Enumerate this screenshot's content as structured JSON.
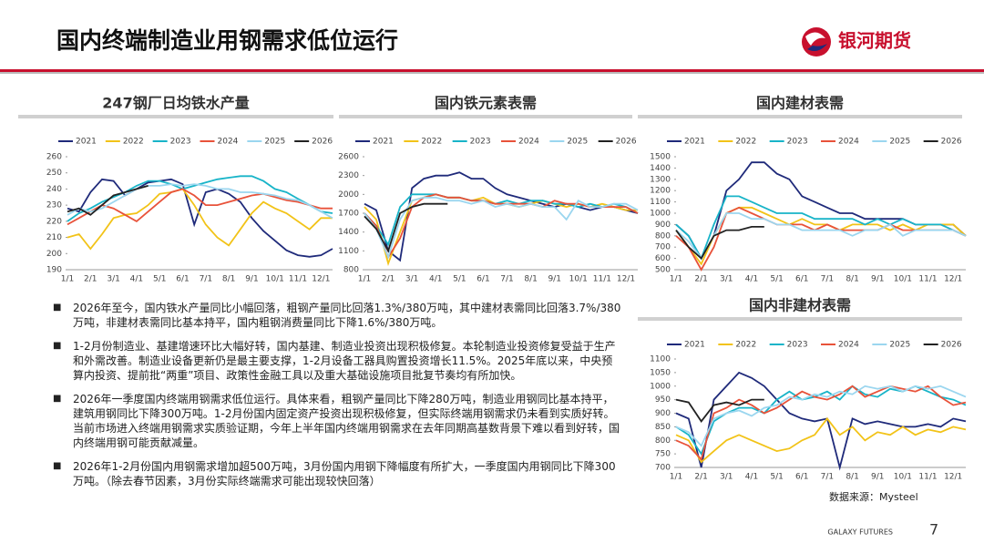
{
  "header": {
    "title": "国内终端制造业用钢需求低位运行",
    "logo": "银河期货"
  },
  "bullets": [
    "2026年至今，国内铁水产量同比小幅回落，粗钢产量同比回落1.3%/380万吨，其中建材表需同比回落3.7%/380万吨，非建材表需同比基本持平，国内粗钢消费量同比下降1.6%/380万吨。",
    "1-2月份制造业、基建增速环比大幅好转，国内基建、制造业投资出现积极修复。本轮制造业投资修复受益于生产和外需改善。制造业设备更新仍是最主要支撑，1-2月设备工器具购置投资增长11.5%。2025年底以来，中央预算内投资、提前批“两重”项目、政策性金融工具以及重大基础设施项目批复节奏均有所加快。",
    "2026年一季度国内终端用钢需求低位运行。具体来看，粗钢产量同比下降280万吨，制造业用钢同比基本持平，建筑用钢同比下降300万吨。1-2月份国内固定资产投资出现积极修复，但实际终端用钢需求仍未看到实质好转。当前市场进入终端用钢需求实质验证期，今年上半年国内终端用钢需求在去年同期高基数背景下难以看到好转，国内终端用钢可能贡献减量。",
    "2026年1-2月份国内用钢需求增加超500万吨，3月份国内用钢下降幅度有所扩大，一季度国内用钢同比下降300万吨。（除去春节因素，3月份实际终端需求可能出现较快回落）"
  ],
  "source": "数据来源：Mysteel",
  "footer": {
    "brand": "GALAXY FUTURES",
    "page": "7"
  },
  "chart_data": [
    {
      "type": "line",
      "title": "247钢厂日均铁水产量",
      "categories": [
        "1/1",
        null,
        "2/1",
        null,
        "3/1",
        null,
        "4/1",
        null,
        "5/1",
        null,
        "6/1",
        null,
        "7/1",
        null,
        "8/1",
        null,
        "9/1",
        null,
        "10/1",
        null,
        "11/1",
        null,
        "12/1",
        null
      ],
      "ylim": [
        190,
        260
      ],
      "yticks": [
        190,
        200,
        210,
        220,
        230,
        240,
        250,
        260
      ],
      "series": [
        {
          "name": "2021",
          "color": "#1f2a7a",
          "values": [
            228,
            226,
            238,
            246,
            245,
            236,
            240,
            244,
            245,
            246,
            243,
            218,
            238,
            240,
            237,
            232,
            222,
            214,
            208,
            202,
            199,
            198,
            199,
            203
          ]
        },
        {
          "name": "2022",
          "color": "#f2c318",
          "values": [
            210,
            212,
            203,
            212,
            222,
            224,
            225,
            230,
            237,
            238,
            240,
            230,
            218,
            210,
            205,
            215,
            225,
            232,
            228,
            225,
            220,
            215,
            222,
            222
          ]
        },
        {
          "name": "2023",
          "color": "#18b4c8",
          "values": [
            220,
            225,
            228,
            232,
            235,
            238,
            242,
            245,
            245,
            243,
            240,
            242,
            244,
            246,
            247,
            248,
            248,
            245,
            240,
            238,
            234,
            230,
            226,
            225
          ]
        },
        {
          "name": "2024",
          "color": "#e8523a",
          "values": [
            218,
            222,
            226,
            230,
            228,
            224,
            220,
            226,
            232,
            238,
            240,
            236,
            230,
            230,
            232,
            234,
            236,
            237,
            235,
            233,
            232,
            230,
            228,
            228
          ]
        },
        {
          "name": "2025",
          "color": "#9bd6ef",
          "values": [
            224,
            228,
            226,
            228,
            232,
            236,
            240,
            242,
            242,
            243,
            242,
            243,
            242,
            240,
            240,
            238,
            238,
            237,
            236,
            234,
            233,
            230,
            226,
            222
          ]
        },
        {
          "name": "2026",
          "color": "#222222",
          "values": [
            226,
            228,
            224,
            230,
            236,
            238,
            240,
            242,
            null,
            null,
            null,
            null,
            null,
            null,
            null,
            null,
            null,
            null,
            null,
            null,
            null,
            null,
            null,
            null
          ]
        }
      ]
    },
    {
      "type": "line",
      "title": "国内铁元素表需",
      "categories": [
        "1/1",
        null,
        "2/1",
        null,
        "3/1",
        null,
        "4/1",
        null,
        "5/1",
        null,
        "6/1",
        null,
        "7/1",
        null,
        "8/1",
        null,
        "9/1",
        null,
        "10/1",
        null,
        "11/1",
        null,
        "12/1",
        null
      ],
      "ylim": [
        800,
        2600
      ],
      "yticks": [
        800,
        1100,
        1400,
        1700,
        2000,
        2300,
        2600
      ],
      "series": [
        {
          "name": "2021",
          "color": "#1f2a7a",
          "values": [
            1850,
            1750,
            1100,
            950,
            2100,
            2250,
            2300,
            2300,
            2350,
            2250,
            2250,
            2100,
            2000,
            1950,
            1900,
            1850,
            1800,
            1850,
            1800,
            1750,
            1800,
            1800,
            1750,
            1700
          ]
        },
        {
          "name": "2022",
          "color": "#f2c318",
          "values": [
            1800,
            1600,
            900,
            1400,
            1900,
            1950,
            2000,
            1950,
            1950,
            1900,
            1950,
            1850,
            1850,
            1800,
            1850,
            1900,
            1850,
            1800,
            1850,
            1800,
            1850,
            1800,
            1750,
            1750
          ]
        },
        {
          "name": "2023",
          "color": "#18b4c8",
          "values": [
            1700,
            1500,
            1200,
            1800,
            2000,
            2000,
            2000,
            1950,
            1950,
            1900,
            1900,
            1850,
            1900,
            1850,
            1900,
            1900,
            1850,
            1850,
            1800,
            1850,
            1800,
            1850,
            1800,
            1700
          ]
        },
        {
          "name": "2024",
          "color": "#e8523a",
          "values": [
            1700,
            1500,
            1000,
            1300,
            1800,
            1950,
            2000,
            1950,
            1950,
            1900,
            1900,
            1850,
            1850,
            1850,
            1850,
            1800,
            1900,
            1850,
            1850,
            1800,
            1800,
            1800,
            1800,
            1700
          ]
        },
        {
          "name": "2025",
          "color": "#9bd6ef",
          "values": [
            1700,
            1450,
            1000,
            1600,
            1900,
            1950,
            1950,
            1900,
            1900,
            1850,
            1900,
            1800,
            1850,
            1800,
            1850,
            1800,
            1800,
            1600,
            1900,
            1800,
            1800,
            1850,
            1850,
            1750
          ]
        },
        {
          "name": "2026",
          "color": "#222222",
          "values": [
            1650,
            1450,
            1100,
            1700,
            1800,
            1850,
            1850,
            1850,
            null,
            null,
            null,
            null,
            null,
            null,
            null,
            null,
            null,
            null,
            null,
            null,
            null,
            null,
            null,
            null
          ]
        }
      ]
    },
    {
      "type": "line",
      "title": "国内建材表需",
      "categories": [
        "1/1",
        null,
        "2/1",
        null,
        "3/1",
        null,
        "4/1",
        null,
        "5/1",
        null,
        "6/1",
        null,
        "7/1",
        null,
        "8/1",
        null,
        "9/1",
        null,
        "10/1",
        null,
        "11/1",
        null,
        "12/1",
        null
      ],
      "ylim": [
        500,
        1500
      ],
      "yticks": [
        500,
        600,
        700,
        800,
        900,
        1000,
        1100,
        1200,
        1300,
        1400,
        1500
      ],
      "series": [
        {
          "name": "2021",
          "color": "#1f2a7a",
          "values": [
            900,
            800,
            600,
            800,
            1200,
            1300,
            1450,
            1450,
            1350,
            1300,
            1150,
            1100,
            1050,
            1000,
            1000,
            950,
            950,
            950,
            950,
            900,
            900,
            900,
            900,
            800
          ]
        },
        {
          "name": "2022",
          "color": "#f2c318",
          "values": [
            850,
            700,
            550,
            800,
            1000,
            1050,
            1050,
            1000,
            950,
            900,
            950,
            900,
            900,
            850,
            900,
            900,
            900,
            850,
            900,
            850,
            900,
            900,
            900,
            800
          ]
        },
        {
          "name": "2023",
          "color": "#18b4c8",
          "values": [
            900,
            800,
            600,
            900,
            1150,
            1150,
            1100,
            1050,
            1000,
            1000,
            1000,
            950,
            950,
            950,
            950,
            900,
            950,
            900,
            950,
            900,
            900,
            900,
            850,
            800
          ]
        },
        {
          "name": "2024",
          "color": "#e8523a",
          "values": [
            800,
            700,
            500,
            700,
            1000,
            1050,
            1000,
            950,
            900,
            900,
            900,
            850,
            900,
            850,
            850,
            850,
            850,
            900,
            850,
            850,
            850,
            850,
            850,
            800
          ]
        },
        {
          "name": "2025",
          "color": "#9bd6ef",
          "values": [
            850,
            750,
            600,
            800,
            1000,
            1000,
            950,
            950,
            900,
            900,
            850,
            850,
            850,
            850,
            800,
            850,
            850,
            900,
            800,
            850,
            850,
            850,
            850,
            800
          ]
        },
        {
          "name": "2026",
          "color": "#222222",
          "values": [
            850,
            700,
            600,
            800,
            850,
            850,
            880,
            880,
            null,
            null,
            null,
            null,
            null,
            null,
            null,
            null,
            null,
            null,
            null,
            null,
            null,
            null,
            null,
            null
          ]
        }
      ]
    },
    {
      "type": "line",
      "title": "国内非建材表需",
      "categories": [
        "1/1",
        null,
        "2/1",
        null,
        "3/1",
        null,
        "4/1",
        null,
        "5/1",
        null,
        "6/1",
        null,
        "7/1",
        null,
        "8/1",
        null,
        "9/1",
        null,
        "10/1",
        null,
        "11/1",
        null,
        "12/1",
        null
      ],
      "ylim": [
        700,
        1100
      ],
      "yticks": [
        700,
        750,
        800,
        850,
        900,
        950,
        1000,
        1050,
        1100
      ],
      "series": [
        {
          "name": "2021",
          "color": "#1f2a7a",
          "values": [
            900,
            880,
            700,
            950,
            1000,
            1050,
            1030,
            1000,
            950,
            900,
            880,
            870,
            880,
            700,
            880,
            860,
            870,
            860,
            850,
            850,
            860,
            850,
            880,
            870
          ]
        },
        {
          "name": "2022",
          "color": "#f2c318",
          "values": [
            820,
            800,
            720,
            760,
            800,
            820,
            800,
            780,
            760,
            770,
            800,
            820,
            880,
            820,
            850,
            800,
            830,
            820,
            850,
            820,
            840,
            830,
            850,
            840
          ]
        },
        {
          "name": "2023",
          "color": "#18b4c8",
          "values": [
            850,
            820,
            750,
            870,
            900,
            920,
            920,
            900,
            950,
            980,
            950,
            960,
            980,
            950,
            1000,
            970,
            960,
            990,
            980,
            1000,
            980,
            960,
            950,
            930
          ]
        },
        {
          "name": "2024",
          "color": "#e8523a",
          "values": [
            800,
            780,
            730,
            900,
            920,
            950,
            930,
            900,
            920,
            950,
            980,
            960,
            950,
            970,
            1000,
            960,
            980,
            1000,
            990,
            980,
            1000,
            960,
            930,
            940
          ]
        },
        {
          "name": "2025",
          "color": "#9bd6ef",
          "values": [
            850,
            830,
            780,
            880,
            900,
            910,
            890,
            920,
            930,
            960,
            950,
            970,
            960,
            980,
            970,
            1000,
            990,
            1000,
            980,
            1000,
            990,
            1000,
            980,
            960
          ]
        },
        {
          "name": "2026",
          "color": "#222222",
          "values": [
            950,
            940,
            870,
            930,
            940,
            930,
            950,
            950,
            null,
            null,
            null,
            null,
            null,
            null,
            null,
            null,
            null,
            null,
            null,
            null,
            null,
            null,
            null,
            null
          ]
        }
      ]
    }
  ]
}
